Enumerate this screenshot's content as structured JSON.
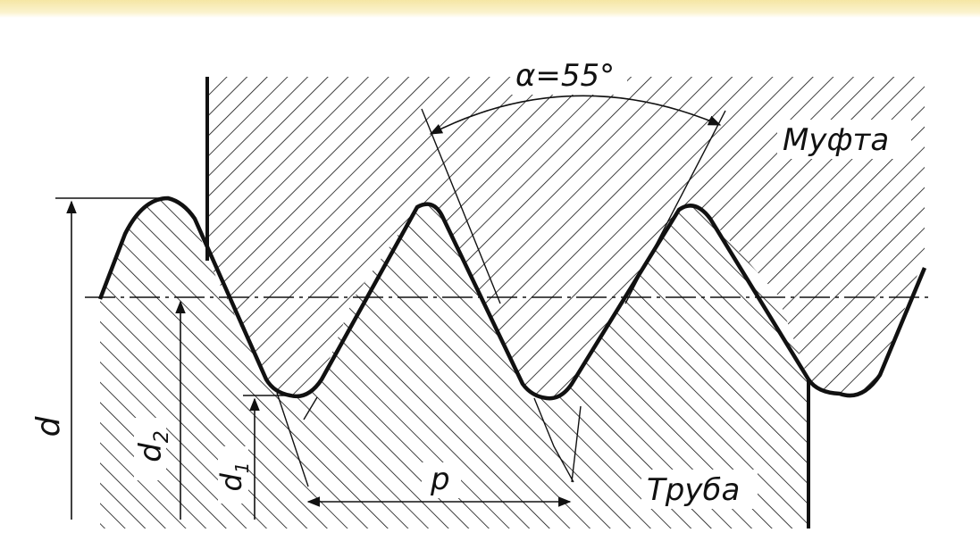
{
  "labels": {
    "angle": "α=55°",
    "coupling": "Муфта",
    "pipe": "Труба",
    "pitch": "p",
    "major_diameter": "d",
    "pitch_diameter": "d",
    "pitch_diameter_sub": "2",
    "minor_diameter": "d",
    "minor_diameter_sub": "1"
  },
  "colors": {
    "ink": "#111111",
    "header_band": "#f5e6a4"
  }
}
